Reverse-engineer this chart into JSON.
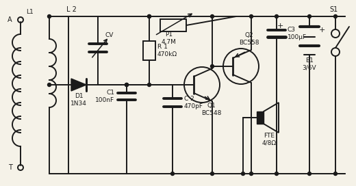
{
  "bg_color": "#f5f2e8",
  "lc": "#1a1a1a",
  "labels": {
    "L1": "L1",
    "L2": "L 2",
    "CV": "CV",
    "R1": "R 1\n470kΩ",
    "P1": "P1\n4,7M",
    "C1": "C1\n100nF",
    "C2": "C 2\n470pF",
    "C3": "C3\n100μF",
    "Q1": "Q1\nBC548",
    "Q2": "Q2\nBC558",
    "D1": "D1\n1N34",
    "FTE": "FTE\n4/8Ω",
    "B1": "B1\n3/6V",
    "S1": "S1",
    "A": "A",
    "T": "T"
  }
}
